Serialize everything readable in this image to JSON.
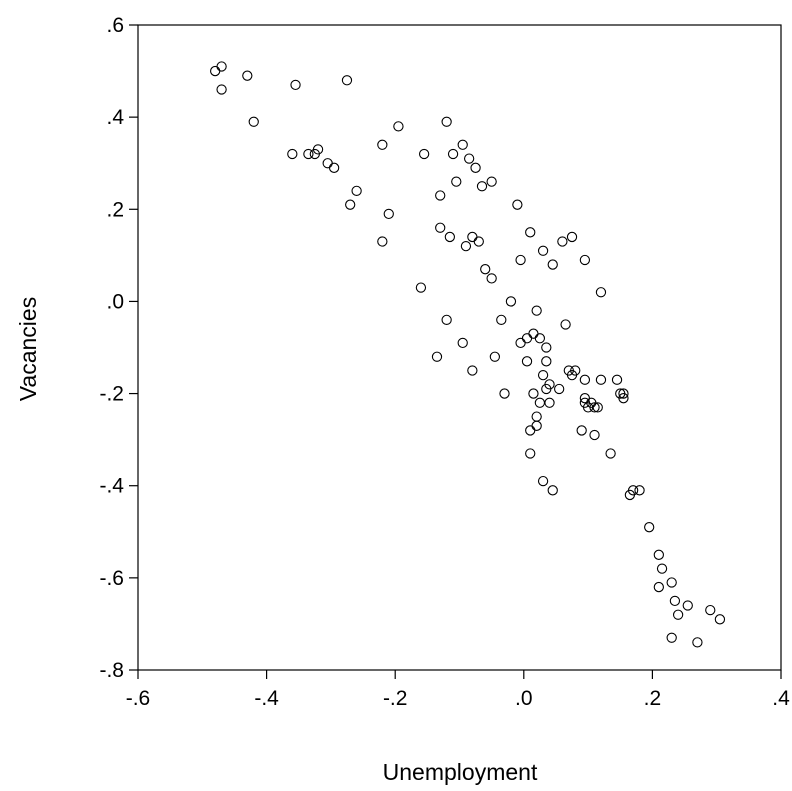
{
  "chart_data": {
    "type": "scatter",
    "title": "",
    "xlabel": "Unemployment",
    "ylabel": "Vacancies",
    "xlim": [
      -0.6,
      0.4
    ],
    "ylim": [
      -0.8,
      0.6
    ],
    "grid": false,
    "legend": "none",
    "marker": "hollow-circle",
    "marker_color": "#000000",
    "x_ticks": [
      -0.6,
      -0.4,
      -0.2,
      0.0,
      0.2,
      0.4
    ],
    "x_tick_labels": [
      "-.6",
      "-.4",
      "-.2",
      ".0",
      ".2",
      ".4"
    ],
    "y_ticks": [
      0.6,
      0.4,
      0.2,
      0.0,
      -0.2,
      -0.4,
      -0.6,
      -0.8
    ],
    "y_tick_labels": [
      ".6",
      ".4",
      ".2",
      ".0",
      "-.2",
      "-.4",
      "-.6",
      "-.8"
    ],
    "points": [
      [
        -0.48,
        0.5
      ],
      [
        -0.47,
        0.51
      ],
      [
        -0.47,
        0.46
      ],
      [
        -0.43,
        0.49
      ],
      [
        -0.42,
        0.39
      ],
      [
        -0.355,
        0.47
      ],
      [
        -0.36,
        0.32
      ],
      [
        -0.335,
        0.32
      ],
      [
        -0.325,
        0.32
      ],
      [
        -0.32,
        0.33
      ],
      [
        -0.305,
        0.3
      ],
      [
        -0.295,
        0.29
      ],
      [
        -0.275,
        0.48
      ],
      [
        -0.27,
        0.21
      ],
      [
        -0.26,
        0.24
      ],
      [
        -0.22,
        0.34
      ],
      [
        -0.22,
        0.13
      ],
      [
        -0.21,
        0.19
      ],
      [
        -0.195,
        0.38
      ],
      [
        -0.16,
        0.03
      ],
      [
        -0.155,
        0.32
      ],
      [
        -0.13,
        0.23
      ],
      [
        -0.13,
        0.16
      ],
      [
        -0.135,
        -0.12
      ],
      [
        -0.12,
        0.39
      ],
      [
        -0.12,
        -0.04
      ],
      [
        -0.115,
        0.14
      ],
      [
        -0.11,
        0.32
      ],
      [
        -0.105,
        0.26
      ],
      [
        -0.095,
        0.34
      ],
      [
        -0.095,
        -0.09
      ],
      [
        -0.09,
        0.12
      ],
      [
        -0.085,
        0.31
      ],
      [
        -0.08,
        0.14
      ],
      [
        -0.08,
        -0.15
      ],
      [
        -0.075,
        0.29
      ],
      [
        -0.07,
        0.13
      ],
      [
        -0.065,
        0.25
      ],
      [
        -0.06,
        0.07
      ],
      [
        -0.05,
        0.26
      ],
      [
        -0.05,
        0.05
      ],
      [
        -0.045,
        -0.12
      ],
      [
        -0.035,
        -0.04
      ],
      [
        -0.03,
        -0.2
      ],
      [
        -0.02,
        0.0
      ],
      [
        -0.01,
        0.21
      ],
      [
        -0.005,
        0.09
      ],
      [
        -0.005,
        -0.09
      ],
      [
        0.005,
        -0.08
      ],
      [
        0.005,
        -0.13
      ],
      [
        0.01,
        0.15
      ],
      [
        0.01,
        -0.28
      ],
      [
        0.01,
        -0.33
      ],
      [
        0.015,
        -0.07
      ],
      [
        0.015,
        -0.2
      ],
      [
        0.02,
        -0.02
      ],
      [
        0.02,
        -0.25
      ],
      [
        0.02,
        -0.27
      ],
      [
        0.025,
        -0.08
      ],
      [
        0.025,
        -0.22
      ],
      [
        0.03,
        0.11
      ],
      [
        0.03,
        -0.16
      ],
      [
        0.03,
        -0.39
      ],
      [
        0.035,
        -0.1
      ],
      [
        0.035,
        -0.19
      ],
      [
        0.035,
        -0.13
      ],
      [
        0.04,
        -0.18
      ],
      [
        0.04,
        -0.22
      ],
      [
        0.045,
        0.08
      ],
      [
        0.045,
        -0.41
      ],
      [
        0.055,
        -0.19
      ],
      [
        0.06,
        0.13
      ],
      [
        0.065,
        -0.05
      ],
      [
        0.07,
        -0.15
      ],
      [
        0.075,
        -0.16
      ],
      [
        0.075,
        0.14
      ],
      [
        0.08,
        -0.15
      ],
      [
        0.09,
        -0.28
      ],
      [
        0.095,
        -0.22
      ],
      [
        0.095,
        -0.17
      ],
      [
        0.095,
        -0.21
      ],
      [
        0.095,
        0.09
      ],
      [
        0.1,
        -0.23
      ],
      [
        0.105,
        -0.22
      ],
      [
        0.11,
        -0.23
      ],
      [
        0.11,
        -0.29
      ],
      [
        0.115,
        -0.23
      ],
      [
        0.12,
        0.02
      ],
      [
        0.12,
        -0.17
      ],
      [
        0.135,
        -0.33
      ],
      [
        0.145,
        -0.17
      ],
      [
        0.15,
        -0.2
      ],
      [
        0.155,
        -0.21
      ],
      [
        0.155,
        -0.2
      ],
      [
        0.165,
        -0.42
      ],
      [
        0.17,
        -0.41
      ],
      [
        0.18,
        -0.41
      ],
      [
        0.195,
        -0.49
      ],
      [
        0.21,
        -0.55
      ],
      [
        0.215,
        -0.58
      ],
      [
        0.21,
        -0.62
      ],
      [
        0.23,
        -0.61
      ],
      [
        0.235,
        -0.65
      ],
      [
        0.24,
        -0.68
      ],
      [
        0.23,
        -0.73
      ],
      [
        0.255,
        -0.66
      ],
      [
        0.27,
        -0.74
      ],
      [
        0.29,
        -0.67
      ],
      [
        0.305,
        -0.69
      ]
    ]
  }
}
